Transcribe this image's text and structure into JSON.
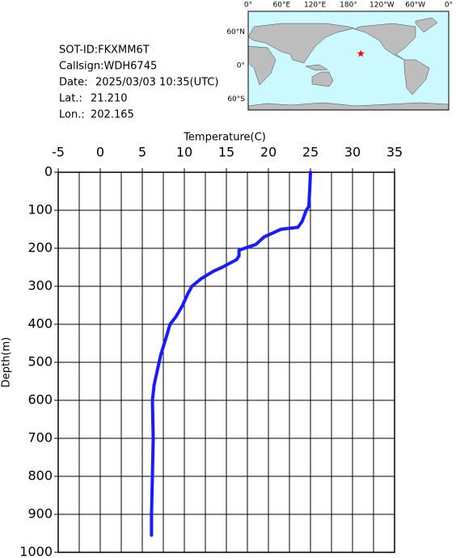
{
  "info": {
    "sot_id": "SOT-ID:FKXMM6T",
    "callsign": "Callsign:WDH6745",
    "date_label": "Date:",
    "date": "2025/03/03 10:35(UTC)",
    "lat_label": "Lat.:",
    "lat": {
      "value": 21.21,
      "label": "21.210"
    },
    "lon_label": "Lon.:",
    "lon": {
      "value": 202.165,
      "label": "202.165"
    }
  },
  "map": {
    "lon_labels": [
      "0°",
      "60°E",
      "120°E",
      "180°",
      "120°W",
      "60°W",
      "0°"
    ],
    "lat_labels": [
      "60°N",
      "0°",
      "60°S"
    ],
    "marker_color": "#ff0000"
  },
  "chart_data": {
    "type": "line",
    "x_label": "Temperature(C)",
    "y_label": "Depth(m)",
    "color": "#1a1aff",
    "y": [
      0,
      50,
      90,
      100,
      130,
      145,
      150,
      160,
      170,
      190,
      205,
      220,
      230,
      250,
      260,
      280,
      300,
      320,
      350,
      380,
      400,
      430,
      480,
      520,
      560,
      600,
      700,
      800,
      900,
      955
    ],
    "values": [
      25.0,
      24.9,
      24.8,
      24.5,
      24.0,
      23.5,
      21.5,
      20.5,
      19.5,
      18.5,
      16.5,
      16.5,
      16.2,
      14.5,
      13.5,
      12.0,
      10.9,
      10.4,
      9.8,
      9.0,
      8.3,
      7.9,
      7.2,
      6.8,
      6.4,
      6.2,
      6.3,
      6.2,
      6.1,
      6.1
    ],
    "xlim": [
      -5,
      35
    ],
    "xticks": [
      -5,
      0,
      5,
      10,
      15,
      20,
      25,
      30,
      35
    ],
    "xminor": [
      -2.5,
      2.5,
      7.5,
      12.5,
      17.5,
      22.5,
      27.5,
      32.5
    ],
    "ylim": [
      0,
      1000
    ],
    "yticks": [
      0,
      100,
      200,
      300,
      400,
      500,
      600,
      700,
      800,
      900,
      1000
    ],
    "grid": true
  }
}
